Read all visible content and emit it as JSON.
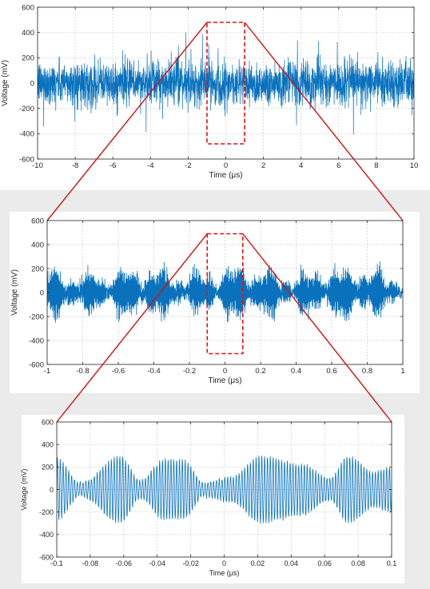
{
  "chart_data": [
    {
      "type": "line",
      "xlabel": "Time (μs)",
      "ylabel": "Voltage (mV)",
      "xlim": [
        -10,
        10
      ],
      "ylim": [
        -600,
        600
      ],
      "xticks": [
        -10,
        -8,
        -6,
        -4,
        -2,
        0,
        2,
        4,
        6,
        8,
        10
      ],
      "yticks": [
        -600,
        -400,
        -200,
        0,
        200,
        400,
        600
      ],
      "grid": true,
      "color": "#0a72bd",
      "series": [
        {
          "x_range": [
            -10,
            10
          ],
          "envelope": "dense noise, mostly within ±200 mV, peaks to about ±450 mV"
        }
      ],
      "zoom_region": {
        "x": [
          -1,
          1
        ],
        "y": [
          -480,
          480
        ]
      }
    },
    {
      "type": "line",
      "xlabel": "Time (μs)",
      "ylabel": "Voltage (mV)",
      "xlim": [
        -1,
        1
      ],
      "ylim": [
        -600,
        600
      ],
      "xticks": [
        -1,
        -0.8,
        -0.6,
        -0.4,
        -0.2,
        0,
        0.2,
        0.4,
        0.6,
        0.8,
        1
      ],
      "yticks": [
        -600,
        -400,
        -200,
        0,
        200,
        400,
        600
      ],
      "grid": true,
      "color": "#0a72bd",
      "series": [
        {
          "x_range": [
            -1,
            1
          ],
          "envelope": "bursty oscillation, peaks to about ±350 mV"
        }
      ],
      "zoom_region": {
        "x": [
          -0.1,
          0.1
        ],
        "y": [
          -510,
          490
        ]
      }
    },
    {
      "type": "line",
      "xlabel": "Time (μs)",
      "ylabel": "Voltage (mV)",
      "xlim": [
        -0.1,
        0.1
      ],
      "ylim": [
        -600,
        600
      ],
      "xticks": [
        -0.1,
        -0.08,
        -0.06,
        -0.04,
        -0.02,
        0,
        0.02,
        0.04,
        0.06,
        0.08,
        0.1
      ],
      "yticks": [
        -600,
        -400,
        -200,
        0,
        200,
        400,
        600
      ],
      "grid": true,
      "color": "#0a72bd",
      "series": [
        {
          "x_range": [
            -0.1,
            0.1
          ],
          "envelope_peaks": [
            {
              "x": -0.1,
              "amp": 280
            },
            {
              "x": -0.086,
              "amp": 60
            },
            {
              "x": -0.062,
              "amp": 300
            },
            {
              "x": -0.05,
              "amp": 80
            },
            {
              "x": -0.036,
              "amp": 270
            },
            {
              "x": -0.024,
              "amp": 260
            },
            {
              "x": -0.012,
              "amp": 60
            },
            {
              "x": 0.004,
              "amp": 110
            },
            {
              "x": 0.022,
              "amp": 300
            },
            {
              "x": 0.046,
              "amp": 230
            },
            {
              "x": 0.063,
              "amp": 100
            },
            {
              "x": 0.074,
              "amp": 295
            },
            {
              "x": 0.09,
              "amp": 160
            },
            {
              "x": 0.1,
              "amp": 200
            }
          ]
        }
      ]
    }
  ]
}
